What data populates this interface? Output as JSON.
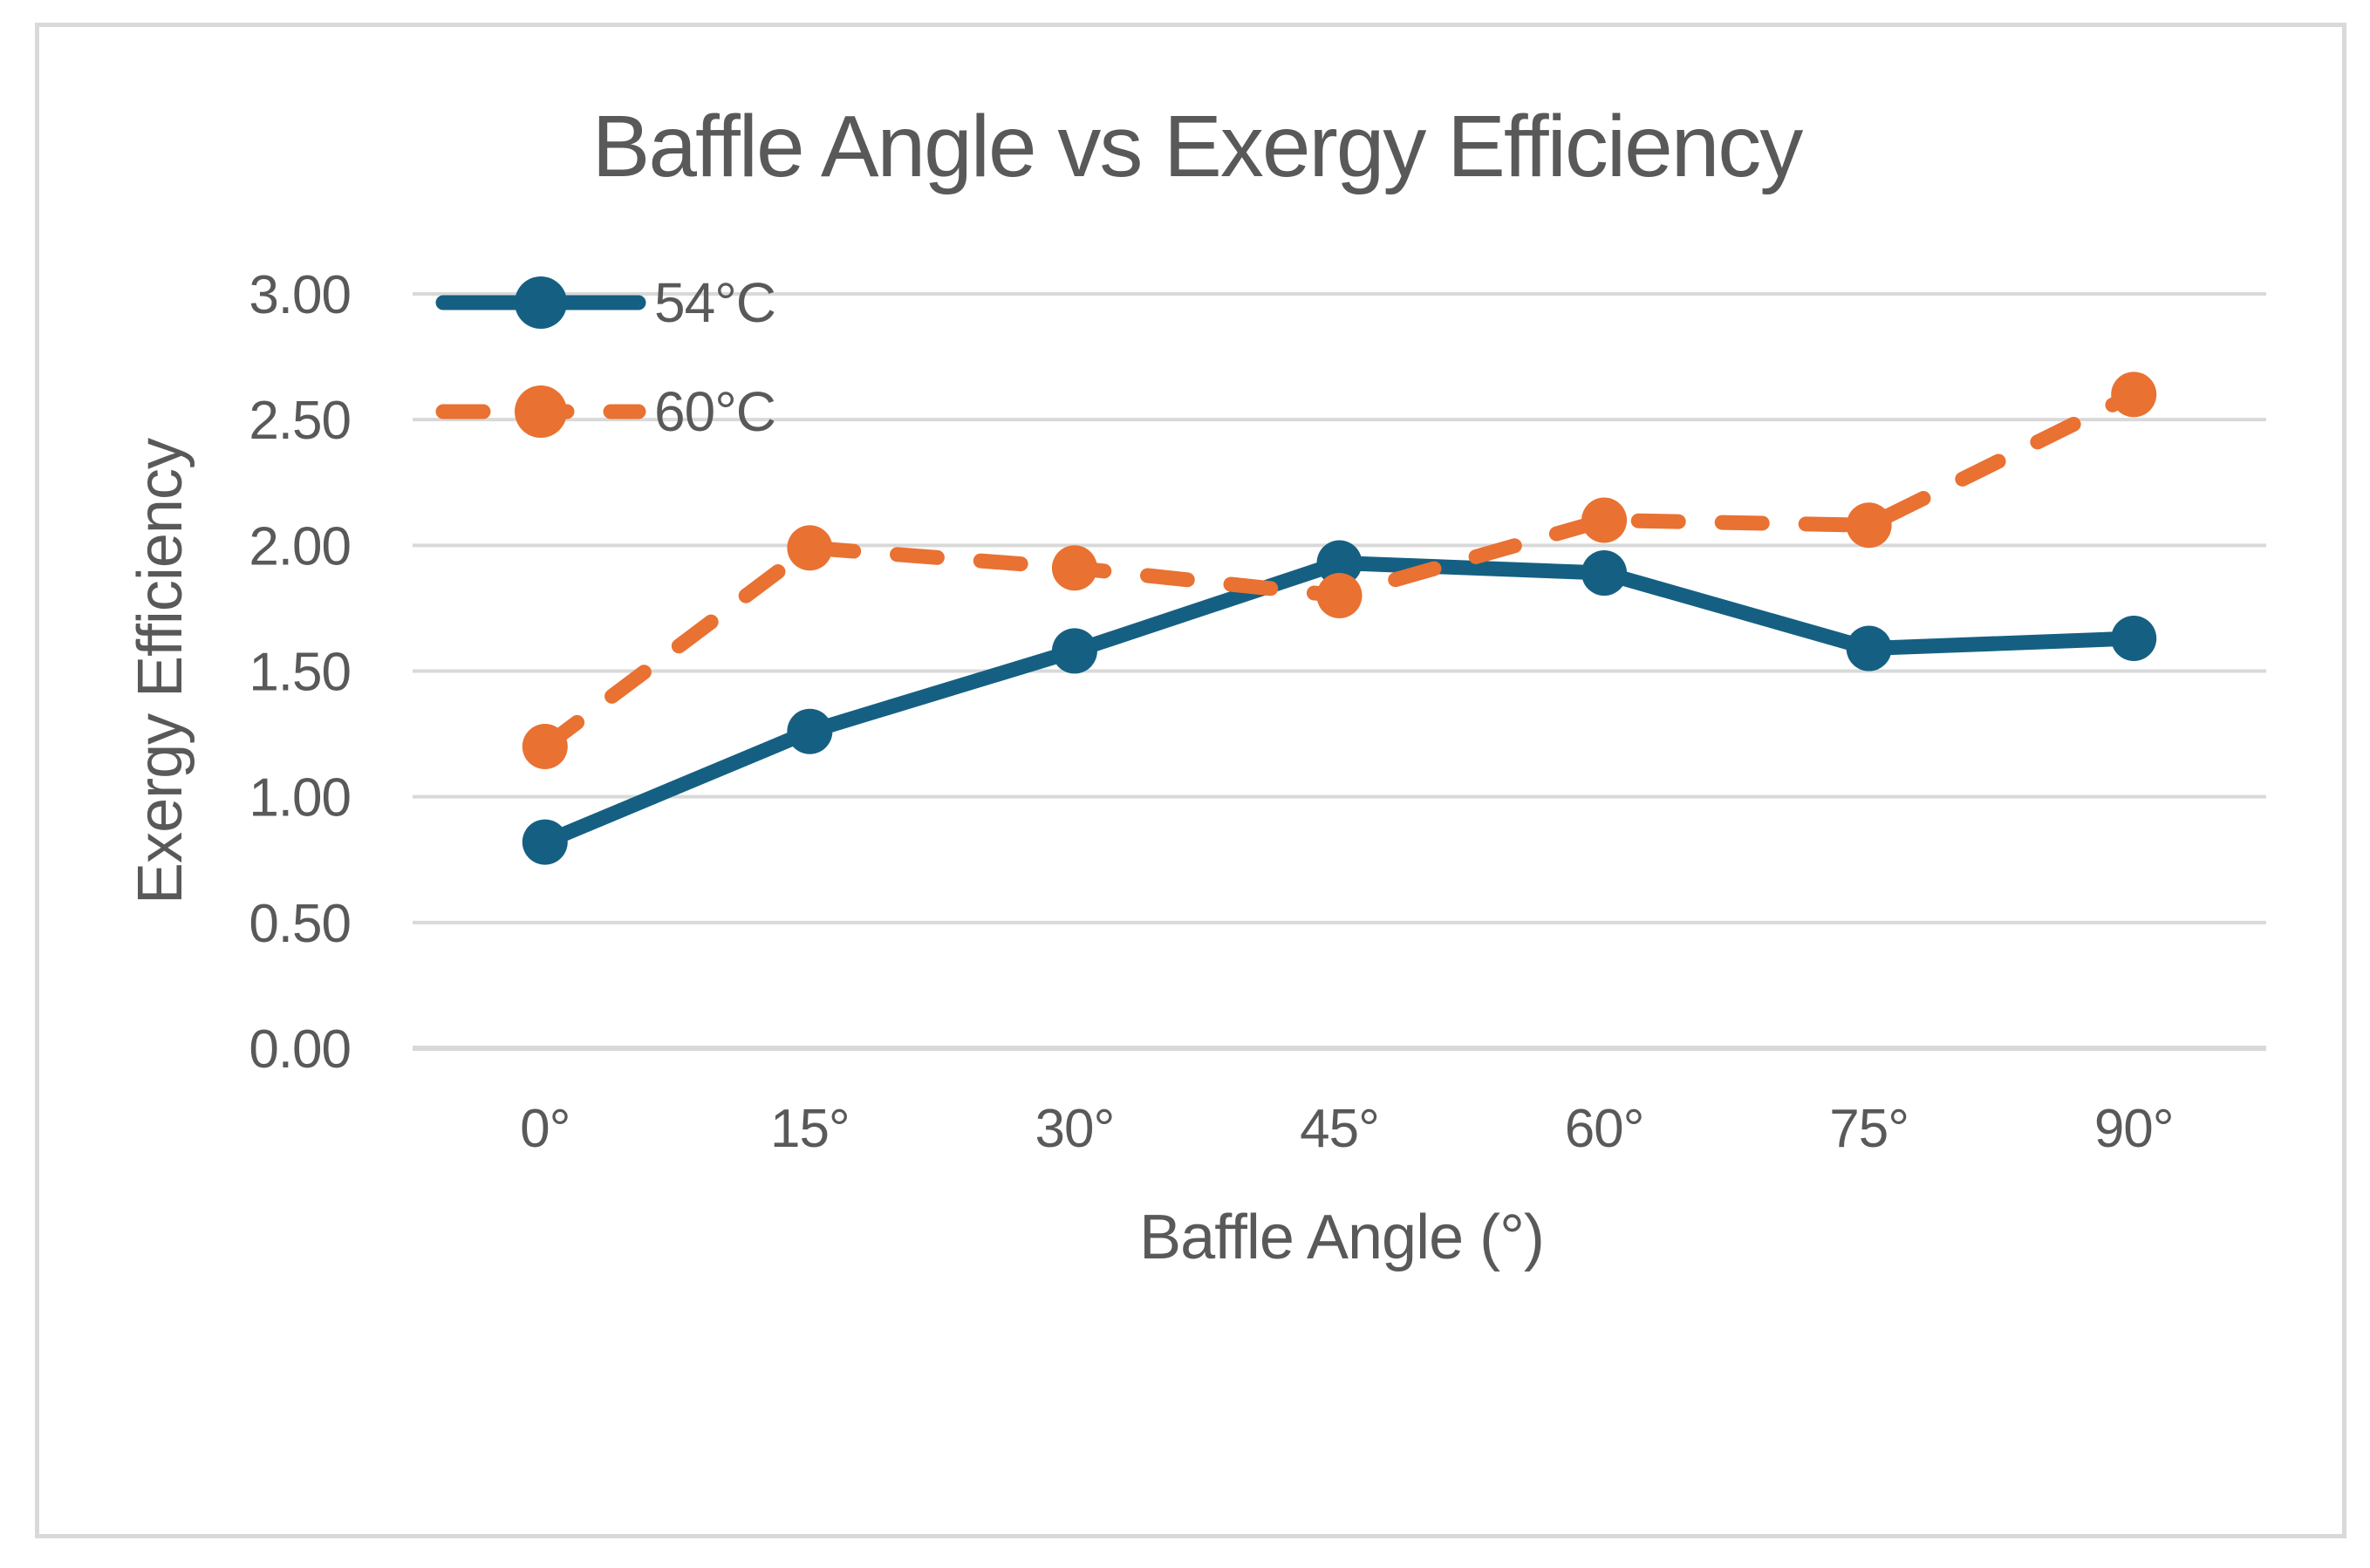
{
  "window": {
    "background_color": "#FFFFFF",
    "frame_border_color": "#D9D9D9"
  },
  "colors": {
    "text": "#595959",
    "gridline": "#D9D9D9",
    "axis_line": "#D9D9D9",
    "series_54c": "#156082",
    "series_60c": "#E97132"
  },
  "chart_data": {
    "type": "line",
    "title": "Baffle Angle vs Exergy Efficiency",
    "xlabel": "Baffle Angle (°)",
    "ylabel": "Exergy Efficiency",
    "categories": [
      "0°",
      "15°",
      "30°",
      "45°",
      "60°",
      "75°",
      "90°"
    ],
    "series": [
      {
        "name": "54°C",
        "color": "#156082",
        "line_style": "solid",
        "marker": "circle",
        "values": [
          0.82,
          1.26,
          1.58,
          1.93,
          1.89,
          1.59,
          1.63
        ]
      },
      {
        "name": "60°C",
        "color": "#E97132",
        "line_style": "dashed",
        "marker": "circle",
        "values": [
          1.2,
          1.99,
          1.91,
          1.8,
          2.1,
          2.08,
          2.6
        ]
      }
    ],
    "ylim": [
      0.0,
      3.0
    ],
    "ytick_step": 0.5,
    "ytick_labels": [
      "0.00",
      "0.50",
      "1.00",
      "1.50",
      "2.00",
      "2.50",
      "3.00"
    ],
    "grid": "horizontal",
    "legend_position": "top-left-inside"
  }
}
